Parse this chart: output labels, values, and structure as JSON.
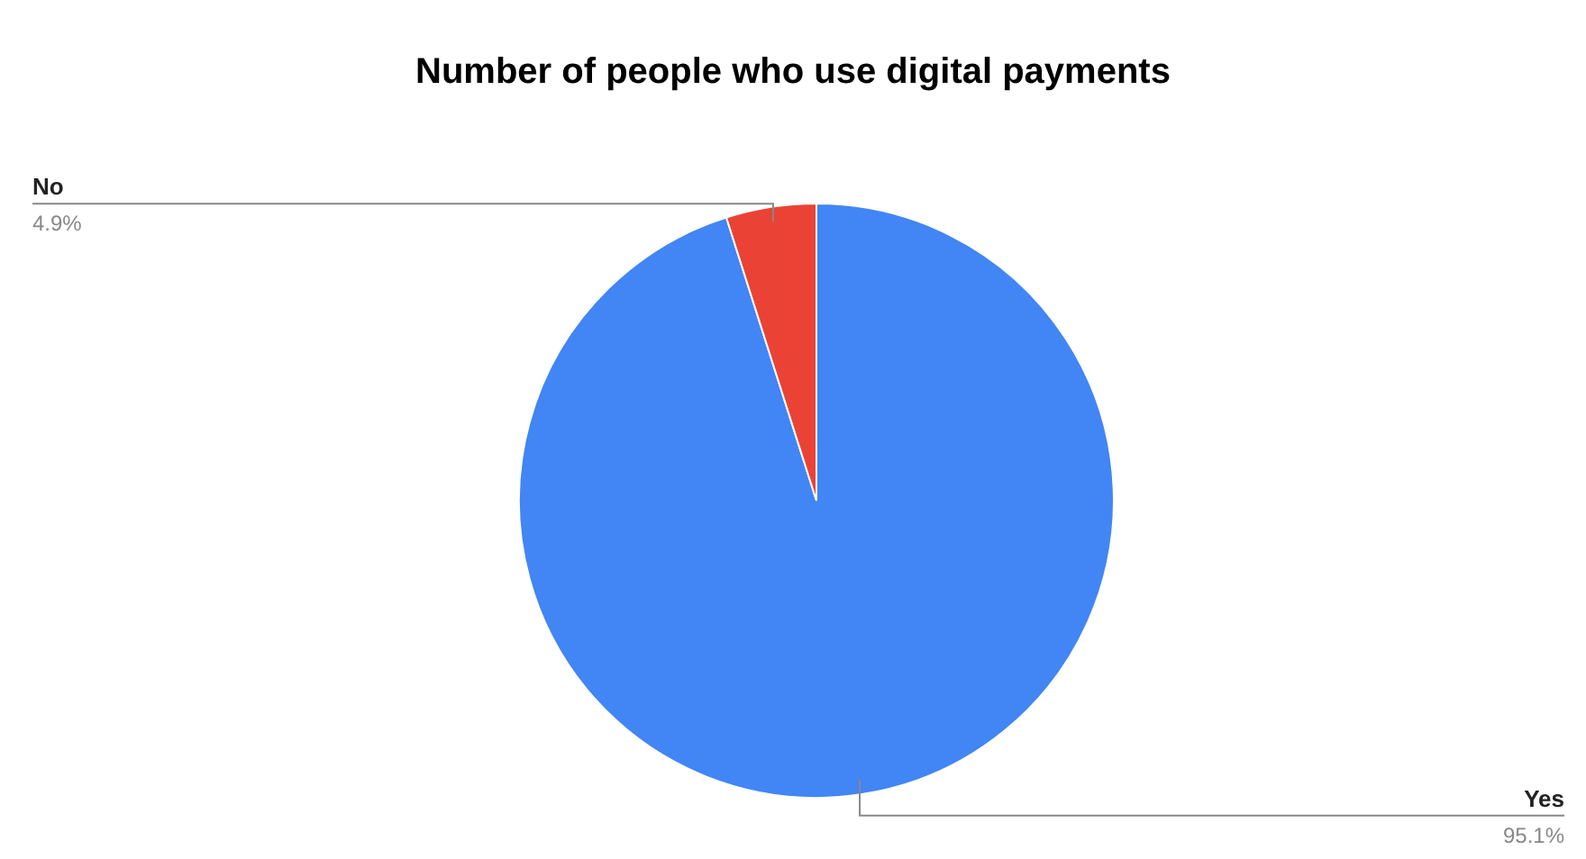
{
  "chart_data": {
    "type": "pie",
    "title": "Number of people who use digital payments",
    "categories": [
      "Yes",
      "No"
    ],
    "values": [
      95.1,
      4.9
    ],
    "value_labels": [
      "95.1%",
      "4.9%"
    ],
    "colors": [
      "#4285f4",
      "#ea4335"
    ]
  }
}
